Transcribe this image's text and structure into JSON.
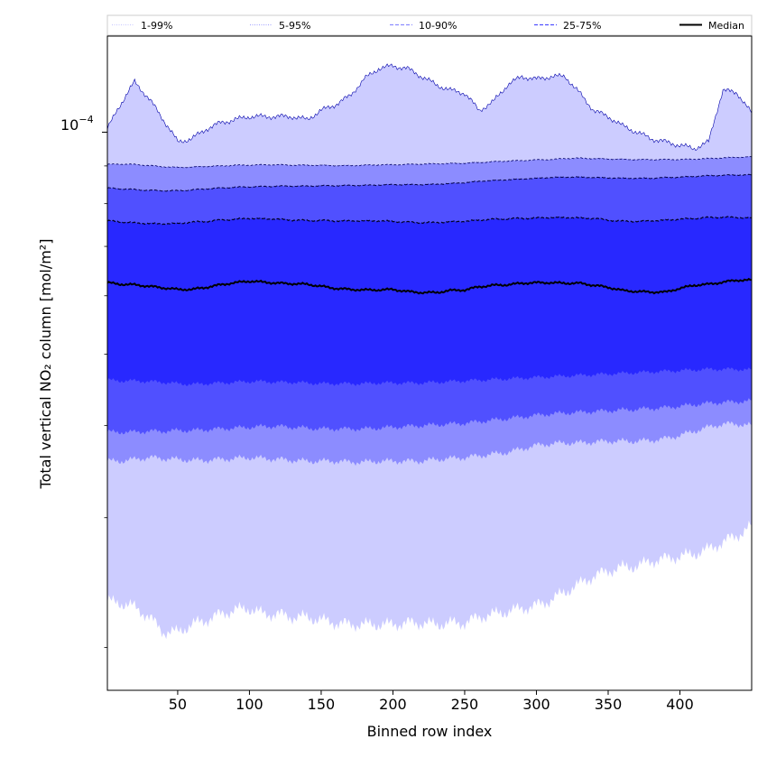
{
  "chart_data": {
    "type": "area",
    "xlabel": "Binned row index",
    "ylabel": "Total vertical NO₂ column [mol/m²]",
    "ytick_label_base": "10",
    "ytick_label_exp": "−4",
    "xlim": [
      1,
      450
    ],
    "ylim": [
      1.75e-05,
      0.000135
    ],
    "log_y": true,
    "grid": false,
    "legend_position": "top",
    "xticks": [
      50,
      100,
      150,
      200,
      250,
      300,
      350,
      400
    ],
    "yticks_major": [
      0.0001
    ],
    "yticks_minor": [
      2e-05,
      3e-05,
      4e-05,
      5e-05,
      6e-05,
      7e-05,
      8e-05,
      9e-05
    ],
    "legend": [
      {
        "label": "1-99%",
        "color": "#ccccff",
        "style": "dotted"
      },
      {
        "label": "5-95%",
        "color": "#a8a8ff",
        "style": "dotted"
      },
      {
        "label": "10-90%",
        "color": "#8c8cff",
        "style": "dashed"
      },
      {
        "label": "25-75%",
        "color": "#5050ff",
        "style": "dashed"
      },
      {
        "label": "Median",
        "color": "#000000",
        "style": "solid"
      }
    ],
    "x": [
      1,
      10,
      20,
      30,
      40,
      50,
      60,
      70,
      80,
      90,
      100,
      110,
      120,
      130,
      140,
      150,
      160,
      170,
      180,
      190,
      200,
      210,
      220,
      230,
      240,
      250,
      260,
      270,
      280,
      290,
      300,
      310,
      320,
      330,
      340,
      350,
      360,
      370,
      380,
      390,
      400,
      410,
      420,
      430,
      440,
      450
    ],
    "series": [
      {
        "name": "p1",
        "values": [
          2.31e-05,
          2.3e-05,
          2.27e-05,
          2.2e-05,
          2.1e-05,
          2.1e-05,
          2.15e-05,
          2.18e-05,
          2.22e-05,
          2.25e-05,
          2.26e-05,
          2.22e-05,
          2.22e-05,
          2.2e-05,
          2.2e-05,
          2.18e-05,
          2.16e-05,
          2.15e-05,
          2.15e-05,
          2.15e-05,
          2.15e-05,
          2.16e-05,
          2.16e-05,
          2.15e-05,
          2.16e-05,
          2.16e-05,
          2.2e-05,
          2.22e-05,
          2.24e-05,
          2.26e-05,
          2.28e-05,
          2.32e-05,
          2.38e-05,
          2.44e-05,
          2.5e-05,
          2.54e-05,
          2.57e-05,
          2.58e-05,
          2.62e-05,
          2.64e-05,
          2.66e-05,
          2.68e-05,
          2.72e-05,
          2.78e-05,
          2.84e-05,
          2.92e-05
        ]
      },
      {
        "name": "p5",
        "values": [
          3.58e-05,
          3.58e-05,
          3.6e-05,
          3.62e-05,
          3.61e-05,
          3.6e-05,
          3.59e-05,
          3.59e-05,
          3.6e-05,
          3.61e-05,
          3.62e-05,
          3.61e-05,
          3.6e-05,
          3.59e-05,
          3.58e-05,
          3.58e-05,
          3.58e-05,
          3.57e-05,
          3.57e-05,
          3.58e-05,
          3.58e-05,
          3.58e-05,
          3.58e-05,
          3.6e-05,
          3.61e-05,
          3.62e-05,
          3.64e-05,
          3.66e-05,
          3.68e-05,
          3.72e-05,
          3.76e-05,
          3.78e-05,
          3.79e-05,
          3.79e-05,
          3.8e-05,
          3.81e-05,
          3.81e-05,
          3.81e-05,
          3.82e-05,
          3.84e-05,
          3.88e-05,
          3.93e-05,
          3.98e-05,
          4.02e-05,
          4.02e-05,
          4e-05
        ]
      },
      {
        "name": "p10",
        "values": [
          3.92e-05,
          3.92e-05,
          3.92e-05,
          3.93e-05,
          3.93e-05,
          3.94e-05,
          3.94e-05,
          3.95e-05,
          3.96e-05,
          3.97e-05,
          3.98e-05,
          3.99e-05,
          3.99e-05,
          3.98e-05,
          3.97e-05,
          3.96e-05,
          3.96e-05,
          3.96e-05,
          3.96e-05,
          3.97e-05,
          3.98e-05,
          3.99e-05,
          4e-05,
          4.01e-05,
          4.02e-05,
          4.03e-05,
          4.05e-05,
          4.07e-05,
          4.09e-05,
          4.11e-05,
          4.13e-05,
          4.15e-05,
          4.16e-05,
          4.17e-05,
          4.18e-05,
          4.19e-05,
          4.2e-05,
          4.21e-05,
          4.22e-05,
          4.23e-05,
          4.25e-05,
          4.27e-05,
          4.29e-05,
          4.3e-05,
          4.31e-05,
          4.32e-05
        ]
      },
      {
        "name": "p25",
        "values": [
          4.61e-05,
          4.6e-05,
          4.6e-05,
          4.59e-05,
          4.58e-05,
          4.56e-05,
          4.55e-05,
          4.56e-05,
          4.57e-05,
          4.58e-05,
          4.59e-05,
          4.59e-05,
          4.58e-05,
          4.58e-05,
          4.57e-05,
          4.56e-05,
          4.56e-05,
          4.56e-05,
          4.56e-05,
          4.57e-05,
          4.57e-05,
          4.57e-05,
          4.57e-05,
          4.58e-05,
          4.59e-05,
          4.6e-05,
          4.61e-05,
          4.62e-05,
          4.63e-05,
          4.64e-05,
          4.65e-05,
          4.66e-05,
          4.67e-05,
          4.68e-05,
          4.69e-05,
          4.7e-05,
          4.71e-05,
          4.72e-05,
          4.73e-05,
          4.74e-05,
          4.75e-05,
          4.76e-05,
          4.77e-05,
          4.77e-05,
          4.77e-05,
          4.76e-05
        ]
      },
      {
        "name": "Median",
        "values": [
          6.25e-05,
          6.22e-05,
          6.21e-05,
          6.18e-05,
          6.15e-05,
          6.12e-05,
          6.12e-05,
          6.16e-05,
          6.21e-05,
          6.25e-05,
          6.28e-05,
          6.26e-05,
          6.24e-05,
          6.23e-05,
          6.22e-05,
          6.18e-05,
          6.14e-05,
          6.12e-05,
          6.11e-05,
          6.11e-05,
          6.12e-05,
          6.08e-05,
          6.06e-05,
          6.06e-05,
          6.1e-05,
          6.11e-05,
          6.17e-05,
          6.2e-05,
          6.21e-05,
          6.24e-05,
          6.25e-05,
          6.25e-05,
          6.24e-05,
          6.24e-05,
          6.2e-05,
          6.16e-05,
          6.1e-05,
          6.08e-05,
          6.07e-05,
          6.07e-05,
          6.14e-05,
          6.2e-05,
          6.22e-05,
          6.26e-05,
          6.3e-05,
          6.3e-05
        ]
      },
      {
        "name": "p75",
        "values": [
          7.58e-05,
          7.56e-05,
          7.53e-05,
          7.52e-05,
          7.51e-05,
          7.52e-05,
          7.55e-05,
          7.57e-05,
          7.6e-05,
          7.62e-05,
          7.64e-05,
          7.63e-05,
          7.62e-05,
          7.6e-05,
          7.59e-05,
          7.59e-05,
          7.58e-05,
          7.58e-05,
          7.58e-05,
          7.58e-05,
          7.57e-05,
          7.55e-05,
          7.54e-05,
          7.54e-05,
          7.56e-05,
          7.57e-05,
          7.6e-05,
          7.62e-05,
          7.63e-05,
          7.64e-05,
          7.65e-05,
          7.66e-05,
          7.66e-05,
          7.65e-05,
          7.64e-05,
          7.6e-05,
          7.57e-05,
          7.57e-05,
          7.58e-05,
          7.6e-05,
          7.62e-05,
          7.64e-05,
          7.66e-05,
          7.67e-05,
          7.66e-05,
          7.65e-05
        ]
      },
      {
        "name": "p90",
        "values": [
          8.4e-05,
          8.38e-05,
          8.36e-05,
          8.34e-05,
          8.33e-05,
          8.33e-05,
          8.35e-05,
          8.38e-05,
          8.4e-05,
          8.42e-05,
          8.43e-05,
          8.44e-05,
          8.45e-05,
          8.45e-05,
          8.45e-05,
          8.46e-05,
          8.46e-05,
          8.47e-05,
          8.47e-05,
          8.48e-05,
          8.49e-05,
          8.49e-05,
          8.49e-05,
          8.5e-05,
          8.52e-05,
          8.54e-05,
          8.58e-05,
          8.6e-05,
          8.62e-05,
          8.64e-05,
          8.66e-05,
          8.68e-05,
          8.69e-05,
          8.69e-05,
          8.68e-05,
          8.67e-05,
          8.66e-05,
          8.66e-05,
          8.66e-05,
          8.68e-05,
          8.69e-05,
          8.71e-05,
          8.73e-05,
          8.74e-05,
          8.75e-05,
          8.75e-05
        ]
      },
      {
        "name": "p95",
        "values": [
          9.04e-05,
          9.05e-05,
          9.04e-05,
          9.01e-05,
          8.98e-05,
          8.96e-05,
          8.97e-05,
          8.99e-05,
          9e-05,
          9.02e-05,
          9.02e-05,
          9.03e-05,
          9.03e-05,
          9.02e-05,
          9.02e-05,
          9.02e-05,
          9.01e-05,
          9.01e-05,
          9.02e-05,
          9.03e-05,
          9.03e-05,
          9.04e-05,
          9.05e-05,
          9.06e-05,
          9.07e-05,
          9.08e-05,
          9.1e-05,
          9.12e-05,
          9.14e-05,
          9.15e-05,
          9.17e-05,
          9.18e-05,
          9.21e-05,
          9.22e-05,
          9.21e-05,
          9.2e-05,
          9.19e-05,
          9.18e-05,
          9.18e-05,
          9.18e-05,
          9.18e-05,
          9.19e-05,
          9.21e-05,
          9.23e-05,
          9.25e-05,
          9.26e-05
        ]
      },
      {
        "name": "p99",
        "values": [
          0.000101,
          0.000109,
          0.000117,
          0.000111,
          0.000104,
          9.7e-05,
          9.8e-05,
          0.000101,
          0.000103,
          0.000104,
          0.000105,
          0.000105,
          0.000105,
          0.000105,
          0.000104,
          0.000107,
          0.000109,
          0.000112,
          0.000118,
          0.000122,
          0.000123,
          0.000122,
          0.000119,
          0.000116,
          0.000114,
          0.000113,
          0.000107,
          0.00011,
          0.000116,
          0.000119,
          0.000118,
          0.000119,
          0.000119,
          0.000113,
          0.000107,
          0.000105,
          0.000102,
          0.0001,
          9.8e-05,
          9.7e-05,
          9.6e-05,
          9.5e-05,
          9.7e-05,
          0.000114,
          0.000113,
          0.000106
        ]
      }
    ]
  }
}
